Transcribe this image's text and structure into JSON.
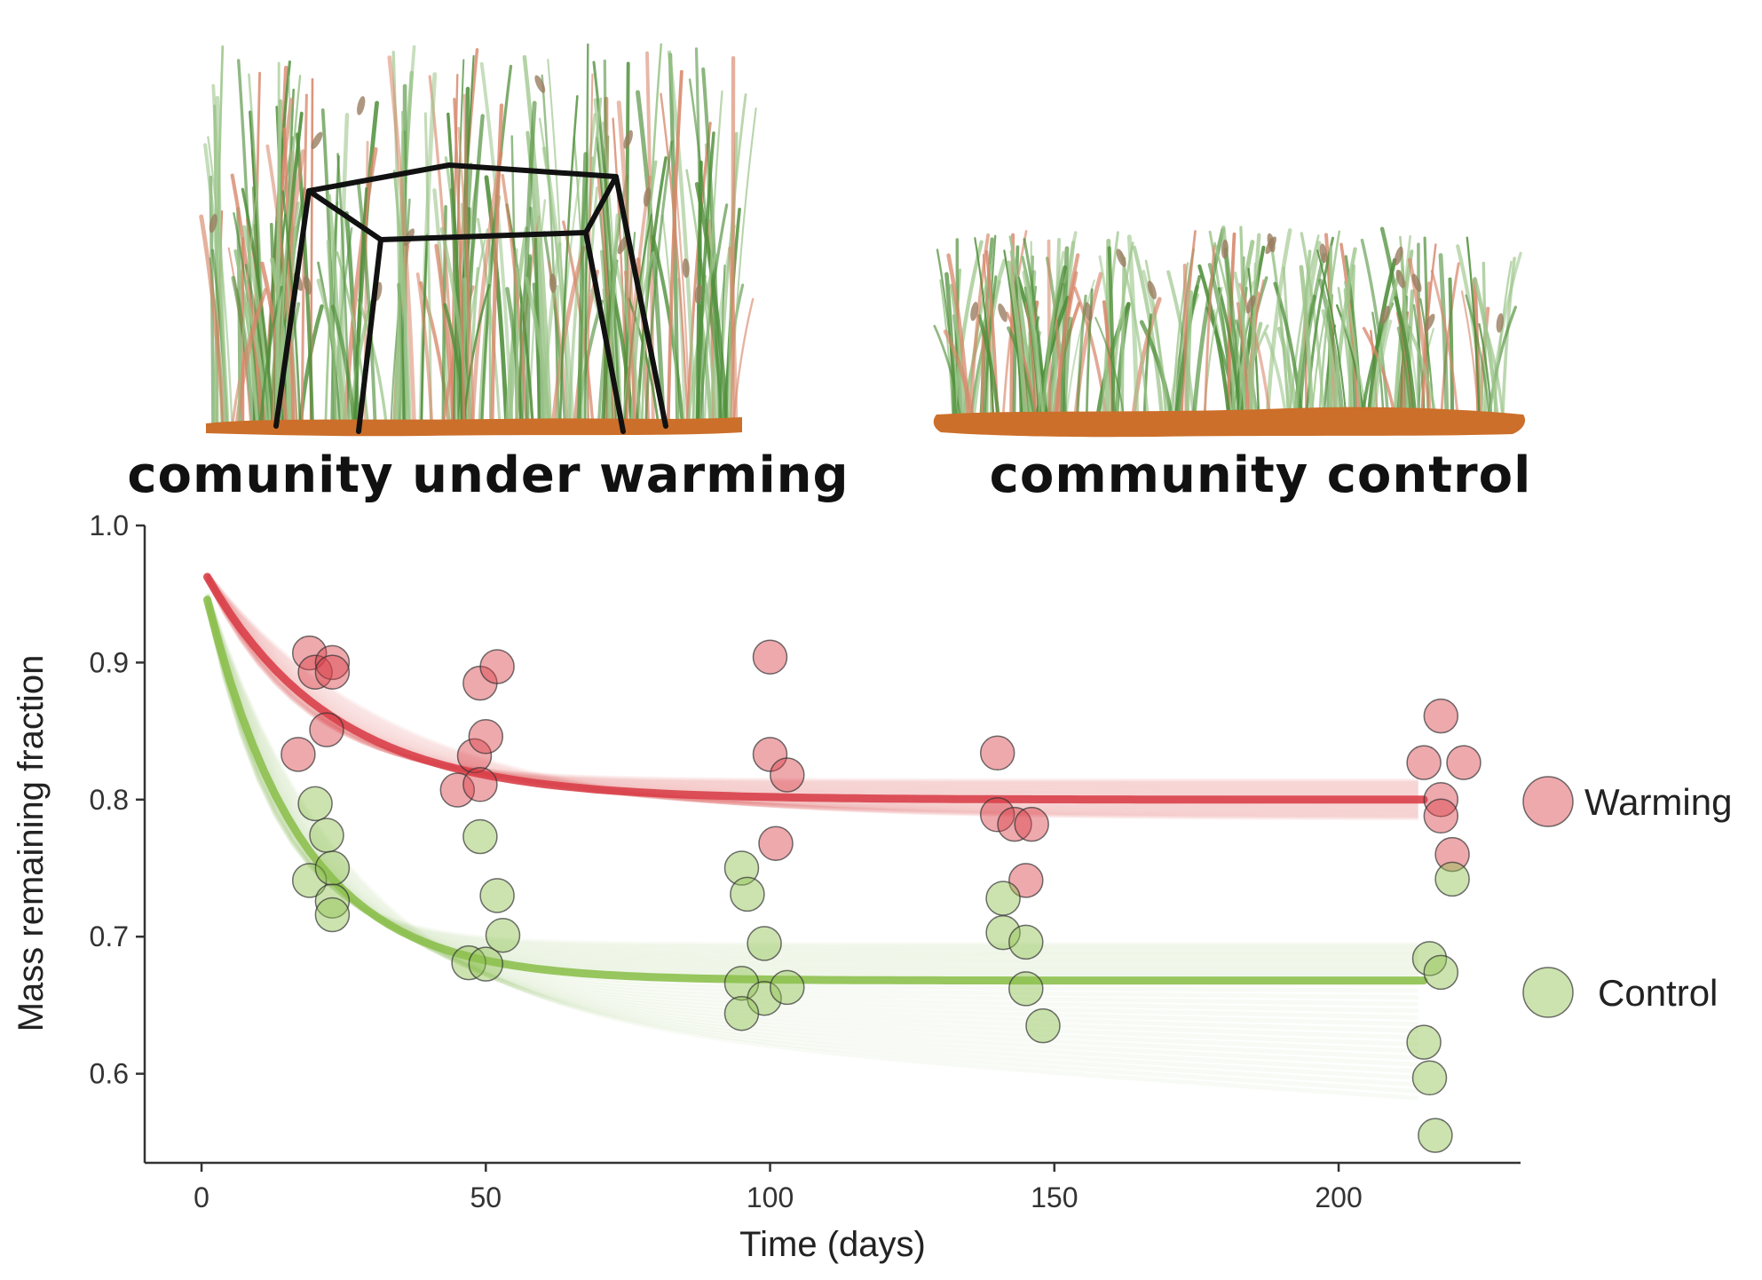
{
  "illustrations": {
    "left_label": "comunity under warming",
    "right_label": "community control"
  },
  "chart_data": {
    "type": "scatter",
    "xlabel": "Time (days)",
    "ylabel": "Mass remaining fraction",
    "xlim": [
      -10,
      232
    ],
    "ylim": [
      0.535,
      1.0
    ],
    "xticks": [
      0,
      50,
      100,
      150,
      200
    ],
    "yticks": [
      0.6,
      0.7,
      0.8,
      0.9,
      1.0
    ],
    "grid": false,
    "legend_position": "right",
    "series": [
      {
        "name": "Warming",
        "color": "#d9404a",
        "points": [
          [
            19,
            0.907
          ],
          [
            20,
            0.893
          ],
          [
            23,
            0.9
          ],
          [
            23,
            0.893
          ],
          [
            17,
            0.833
          ],
          [
            22,
            0.851
          ],
          [
            45,
            0.807
          ],
          [
            48,
            0.832
          ],
          [
            49,
            0.811
          ],
          [
            50,
            0.846
          ],
          [
            49,
            0.885
          ],
          [
            52,
            0.897
          ],
          [
            100,
            0.904
          ],
          [
            100,
            0.833
          ],
          [
            103,
            0.818
          ],
          [
            101,
            0.768
          ],
          [
            140,
            0.834
          ],
          [
            140,
            0.789
          ],
          [
            143,
            0.782
          ],
          [
            146,
            0.782
          ],
          [
            145,
            0.741
          ],
          [
            215,
            0.827
          ],
          [
            218,
            0.861
          ],
          [
            218,
            0.8
          ],
          [
            218,
            0.788
          ],
          [
            222,
            0.827
          ],
          [
            220,
            0.76
          ]
        ],
        "fit": {
          "plateau": 0.8,
          "amplitude": 0.17,
          "rate": 0.045,
          "band": 0.014
        }
      },
      {
        "name": "Control",
        "color": "#8dc04f",
        "points": [
          [
            20,
            0.797
          ],
          [
            22,
            0.774
          ],
          [
            19,
            0.741
          ],
          [
            23,
            0.75
          ],
          [
            23,
            0.726
          ],
          [
            23,
            0.716
          ],
          [
            47,
            0.681
          ],
          [
            50,
            0.68
          ],
          [
            49,
            0.773
          ],
          [
            52,
            0.73
          ],
          [
            53,
            0.701
          ],
          [
            95,
            0.75
          ],
          [
            96,
            0.731
          ],
          [
            99,
            0.695
          ],
          [
            95,
            0.666
          ],
          [
            99,
            0.655
          ],
          [
            95,
            0.644
          ],
          [
            103,
            0.663
          ],
          [
            141,
            0.728
          ],
          [
            141,
            0.703
          ],
          [
            145,
            0.696
          ],
          [
            145,
            0.662
          ],
          [
            148,
            0.635
          ],
          [
            216,
            0.684
          ],
          [
            218,
            0.674
          ],
          [
            220,
            0.742
          ],
          [
            215,
            0.623
          ],
          [
            216,
            0.597
          ],
          [
            217,
            0.555
          ]
        ],
        "fit": {
          "plateau": 0.668,
          "amplitude": 0.295,
          "rate": 0.06,
          "band": 0.012
        }
      }
    ]
  },
  "colors": {
    "warming": "#d9404a",
    "control": "#8dc04f",
    "soil": "#cc6f2a",
    "grass_dark": "#4f8f3a",
    "grass_light": "#9cc58a",
    "grass_red": "#d7876a",
    "seedhead": "#9a7d60",
    "frame": "#111111"
  }
}
